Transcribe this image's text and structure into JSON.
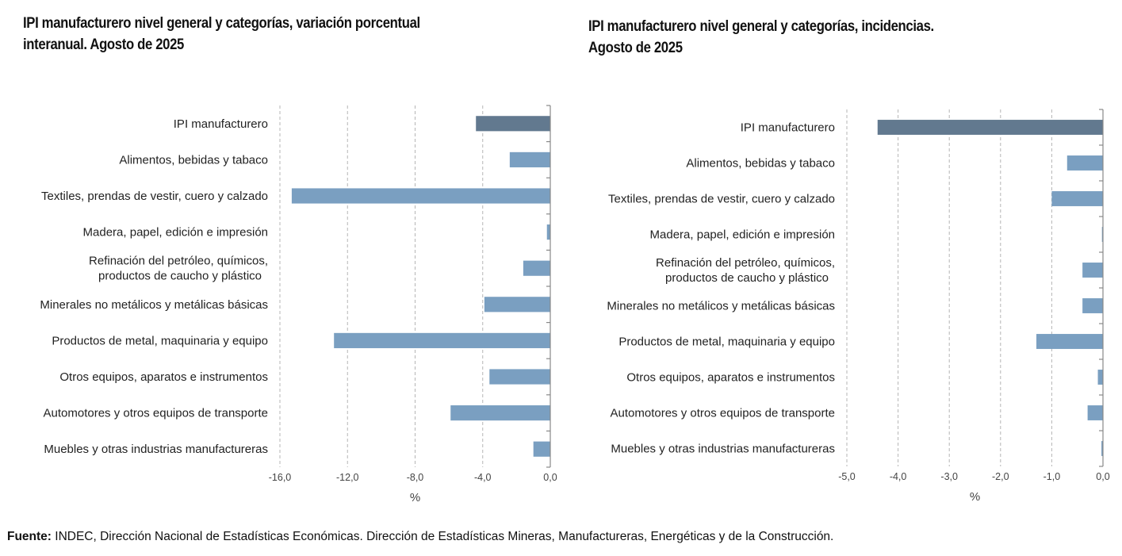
{
  "colors": {
    "total_bar": "#62798f",
    "category_bar": "#7a9fc1",
    "grid": "#b5b5b5",
    "axis": "#888888"
  },
  "chart_data": [
    {
      "type": "bar",
      "orientation": "horizontal",
      "title": "IPI manufacturero nivel general y  categorías, variación porcentual interanual. Agosto de 2025",
      "title_lines": [
        "IPI manufacturero nivel general y  categorías, variación porcentual",
        "interanual. Agosto de 2025"
      ],
      "xlabel": "%",
      "ylabel": "",
      "xlim": [
        -16,
        0
      ],
      "xticks": [
        -16,
        -12,
        -8,
        -4,
        0
      ],
      "xtick_labels": [
        "-16,0",
        "-12,0",
        "-8,0",
        "-4,0",
        "0,0"
      ],
      "grid": true,
      "categories": [
        [
          "IPI manufacturero"
        ],
        [
          "Alimentos, bebidas y tabaco"
        ],
        [
          "Textiles, prendas de vestir, cuero y calzado"
        ],
        [
          "Madera, papel, edición e impresión"
        ],
        [
          "Refinación del petróleo, químicos,",
          "productos de caucho y plástico"
        ],
        [
          "Minerales no metálicos y metálicas básicas"
        ],
        [
          "Productos de metal, maquinaria y equipo"
        ],
        [
          "Otros equipos, aparatos e instrumentos"
        ],
        [
          "Automotores y otros equipos de transporte"
        ],
        [
          "Muebles y otras industrias manufactureras"
        ]
      ],
      "values": [
        -4.4,
        -2.4,
        -15.3,
        -0.2,
        -1.6,
        -3.9,
        -12.8,
        -3.6,
        -5.9,
        -1.0
      ]
    },
    {
      "type": "bar",
      "orientation": "horizontal",
      "title": "IPI manufacturero nivel general y categorías, incidencias. Agosto de 2025",
      "title_lines": [
        "IPI manufacturero nivel general y categorías, incidencias.",
        "Agosto de 2025"
      ],
      "xlabel": "%",
      "ylabel": "",
      "xlim": [
        -5,
        0
      ],
      "xticks": [
        -5,
        -4,
        -3,
        -2,
        -1,
        0
      ],
      "xtick_labels": [
        "-5,0",
        "-4,0",
        "-3,0",
        "-2,0",
        "-1,0",
        "0,0"
      ],
      "grid": true,
      "categories": [
        [
          "IPI manufacturero"
        ],
        [
          "Alimentos, bebidas y tabaco"
        ],
        [
          "Textiles, prendas de vestir, cuero y calzado"
        ],
        [
          "Madera, papel, edición e impresión"
        ],
        [
          "Refinación del petróleo, químicos,",
          "productos de caucho y plástico"
        ],
        [
          "Minerales no metálicos y metálicas básicas"
        ],
        [
          "Productos de metal, maquinaria y equipo"
        ],
        [
          "Otros equipos, aparatos e instrumentos"
        ],
        [
          "Automotores y otros equipos de transporte"
        ],
        [
          "Muebles y otras industrias manufactureras"
        ]
      ],
      "values": [
        -4.4,
        -0.7,
        -1.0,
        -0.02,
        -0.4,
        -0.4,
        -1.3,
        -0.1,
        -0.3,
        -0.03
      ]
    }
  ],
  "footer": {
    "label": "Fuente:",
    "text": " INDEC, Dirección Nacional de Estadísticas Económicas. Dirección de Estadísticas Mineras, Manufactureras, Energéticas y de la Construcción."
  }
}
